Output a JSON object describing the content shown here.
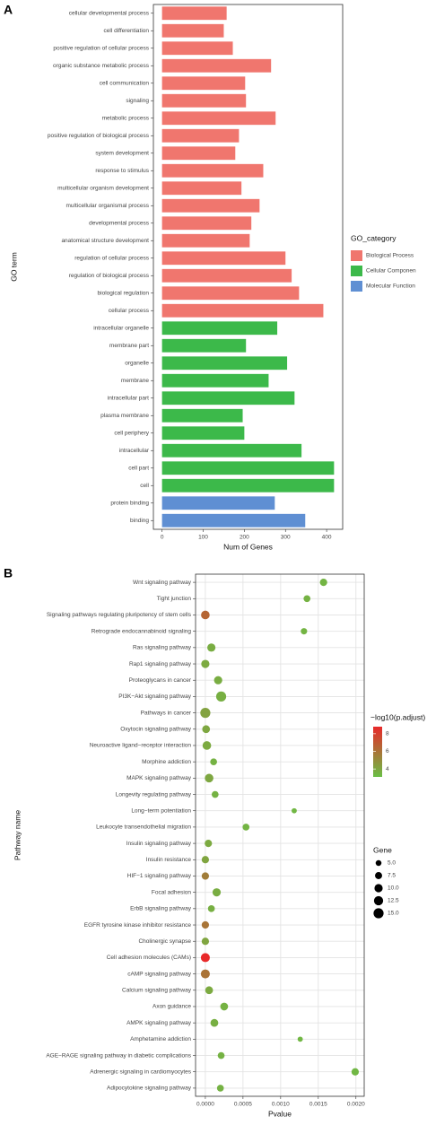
{
  "chart_data": [
    {
      "type": "bar",
      "orientation": "horizontal",
      "panel_label": "A",
      "x_label": "Num of Genes",
      "y_label": "GO term",
      "categories": [
        "cellular developmental process",
        "cell differentiation",
        "positive regulation of cellular process",
        "organic substance metabolic process",
        "cell communication",
        "signaling",
        "metabolic process",
        "positive regulation of biological process",
        "system development",
        "response to stimulus",
        "multicellular organism development",
        "multicellular organismal process",
        "developmental process",
        "anatomical structure development",
        "regulation of cellular process",
        "regulation of biological process",
        "biological regulation",
        "cellular process",
        "intracellular organelle",
        "membrane part",
        "organelle",
        "membrane",
        "intracellular part",
        "plasma membrane",
        "cell periphery",
        "intracellular",
        "cell part",
        "cell",
        "protein binding",
        "binding"
      ],
      "series": [
        {
          "name": "Biological Process",
          "color": "#f0766e",
          "values": [
            157,
            150,
            172,
            265,
            202,
            204,
            276,
            187,
            178,
            246,
            193,
            237,
            217,
            213,
            300,
            315,
            333,
            392,
            null,
            null,
            null,
            null,
            null,
            null,
            null,
            null,
            null,
            null,
            null,
            null
          ]
        },
        {
          "name": "Cellular Componen",
          "color": "#3cb94a",
          "values": [
            null,
            null,
            null,
            null,
            null,
            null,
            null,
            null,
            null,
            null,
            null,
            null,
            null,
            null,
            null,
            null,
            null,
            null,
            280,
            204,
            304,
            259,
            322,
            196,
            200,
            339,
            418,
            418,
            null,
            null
          ]
        },
        {
          "name": "Molecular Function",
          "color": "#5f8fd3",
          "values": [
            null,
            null,
            null,
            null,
            null,
            null,
            null,
            null,
            null,
            null,
            null,
            null,
            null,
            null,
            null,
            null,
            null,
            null,
            null,
            null,
            null,
            null,
            null,
            null,
            null,
            null,
            null,
            null,
            274,
            348
          ]
        }
      ],
      "legend_title": "GO_category",
      "xlim": [
        -21,
        439
      ],
      "xticks": [
        0,
        100,
        200,
        300,
        400
      ],
      "grid": false
    },
    {
      "type": "dot",
      "panel_label": "B",
      "x_label": "Pvalue",
      "y_label": "Pathway name",
      "categories": [
        "Wnt signaling pathway",
        "Tight junction",
        "Signaling pathways regulating pluripotency of stem cells",
        "Retrograde endocannabinoid signaling",
        "Ras signaling pathway",
        "Rap1 signaling pathway",
        "Proteoglycans in cancer",
        "PI3K−Akt signaling pathway",
        "Pathways in cancer",
        "Oxytocin signaling pathway",
        "Neuroactive ligand−receptor interaction",
        "Morphine addiction",
        "MAPK signaling pathway",
        "Longevity regulating pathway",
        "Long−term potentiation",
        "Leukocyte transendothelial migration",
        "Insulin signaling pathway",
        "Insulin resistance",
        "HIF−1 signaling pathway",
        "Focal adhesion",
        "ErbB signaling pathway",
        "EGFR tyrosine kinase inhibitor resistance",
        "Cholinergic synapse",
        "Cell adhesion molecules (CAMs)",
        "cAMP signaling pathway",
        "Calcium signaling pathway",
        "Axon guidance",
        "AMPK signaling pathway",
        "Amphetamine addiction",
        "AGE−RAGE signaling pathway in diabetic complications",
        "Adrenergic signaling in cardiomyocytes",
        "Adipocytokine signaling pathway"
      ],
      "values": [
        0.00157,
        0.00135,
        0.0,
        0.00131,
        8e-05,
        0.0,
        0.00017,
        0.00021,
        0.0,
        1e-05,
        2e-05,
        0.00011,
        5e-05,
        0.00013,
        0.00118,
        0.00054,
        4e-05,
        0.0,
        0.0,
        0.00015,
        8e-05,
        0.0,
        0.0,
        0.0,
        0.0,
        5e-05,
        0.00025,
        0.00012,
        0.00126,
        0.00021,
        0.00199,
        0.0002
      ],
      "color_values": [
        3.5,
        3.6,
        6.5,
        3.5,
        3.8,
        3.9,
        3.8,
        3.7,
        4.2,
        4.0,
        3.9,
        3.6,
        4.0,
        3.6,
        3.4,
        3.5,
        3.9,
        4.1,
        5.6,
        3.8,
        3.7,
        5.9,
        4.1,
        8.8,
        6.0,
        3.9,
        3.6,
        3.7,
        3.4,
        3.6,
        3.4,
        3.6
      ],
      "gene_counts": [
        8,
        7,
        11,
        6,
        10,
        10,
        10,
        15,
        15,
        9,
        11,
        7,
        11,
        7,
        4,
        7,
        8,
        8,
        8,
        10,
        7,
        8,
        8,
        12,
        12,
        9,
        9,
        9,
        4,
        7,
        8,
        7
      ],
      "color_legend": {
        "title": "−log10(p.adjust)",
        "lim": [
          3.1,
          8.8
        ],
        "ticks": [
          4,
          6,
          8
        ],
        "colors": [
          "#6abf45",
          "#e8292a"
        ]
      },
      "size_legend": {
        "title": "Gene",
        "ticks": [
          {
            "value": 5,
            "label": "5.0"
          },
          {
            "value": 7.5,
            "label": "7.5"
          },
          {
            "value": 10,
            "label": "10.0"
          },
          {
            "value": 12.5,
            "label": "12.5"
          },
          {
            "value": 15,
            "label": "15.0"
          }
        ]
      },
      "xlim": [
        -0.00013,
        0.00211
      ],
      "xticks": [
        {
          "value": 0,
          "label": "0.0000"
        },
        {
          "value": 0.0005,
          "label": "0.0005"
        },
        {
          "value": 0.001,
          "label": "0.0010"
        },
        {
          "value": 0.0015,
          "label": "0.0015"
        },
        {
          "value": 0.002,
          "label": "0.0020"
        }
      ],
      "grid": true
    }
  ]
}
